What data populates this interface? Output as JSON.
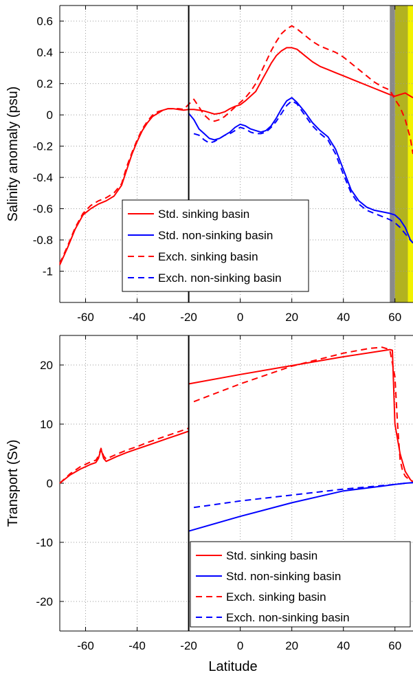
{
  "chart_data": [
    {
      "type": "line",
      "ylabel": "Salinity anomaly (psu)",
      "xlabel": "",
      "xlim": [
        -70,
        67
      ],
      "ylim": [
        -1.2,
        0.7
      ],
      "xticks": [
        -60,
        -40,
        -20,
        0,
        20,
        40,
        60
      ],
      "yticks": [
        -1,
        -0.8,
        -0.6,
        -0.4,
        -0.2,
        0,
        0.2,
        0.4,
        0.6
      ],
      "xtick_labels": [
        "-60",
        "-40",
        "-20",
        "0",
        "20",
        "40",
        "60"
      ],
      "ytick_labels": [
        "-1",
        "-0.8",
        "-0.6",
        "-0.4",
        "-0.2",
        "0",
        "0.2",
        "0.4",
        "0.6"
      ],
      "grid": true,
      "legend_position": "lower-left",
      "vertical_line_x": -20,
      "shaded_bands": [
        {
          "x0": 58,
          "x1": 60,
          "color": "#8a8a8a"
        },
        {
          "x0": 60,
          "x1": 65,
          "color": "#b2b220"
        },
        {
          "x0": 65,
          "x1": 67,
          "color": "#f2f200"
        }
      ],
      "series": [
        {
          "name": "Std. sinking basin",
          "color": "#ff0000",
          "dash": "solid",
          "x": [
            -70,
            -67,
            -64,
            -61,
            -58,
            -55,
            -52,
            -49,
            -46,
            -44,
            -42,
            -40,
            -38,
            -36,
            -34,
            -32,
            -30,
            -28,
            -26,
            -24,
            -22,
            -20,
            -18,
            -16,
            -14,
            -12,
            -10,
            -8,
            -6,
            -4,
            -2,
            0,
            2,
            4,
            6,
            8,
            10,
            12,
            14,
            16,
            18,
            20,
            22,
            25,
            28,
            31,
            34,
            37,
            40,
            43,
            46,
            49,
            52,
            55,
            58,
            60,
            62,
            64,
            66,
            67
          ],
          "y": [
            -0.96,
            -0.85,
            -0.73,
            -0.64,
            -0.6,
            -0.57,
            -0.55,
            -0.52,
            -0.45,
            -0.35,
            -0.25,
            -0.17,
            -0.1,
            -0.05,
            -0.01,
            0.01,
            0.03,
            0.04,
            0.04,
            0.035,
            0.03,
            0.035,
            0.035,
            0.03,
            0.025,
            0.015,
            0.005,
            0.01,
            0.02,
            0.04,
            0.055,
            0.065,
            0.09,
            0.12,
            0.15,
            0.21,
            0.27,
            0.33,
            0.38,
            0.41,
            0.43,
            0.43,
            0.42,
            0.38,
            0.34,
            0.31,
            0.29,
            0.27,
            0.25,
            0.23,
            0.21,
            0.19,
            0.17,
            0.15,
            0.13,
            0.12,
            0.13,
            0.14,
            0.12,
            0.11
          ]
        },
        {
          "name": "Std. non-sinking basin",
          "color": "#0000ff",
          "dash": "solid",
          "x": [
            -20,
            -18,
            -16,
            -14,
            -12,
            -10,
            -8,
            -6,
            -4,
            -2,
            0,
            2,
            4,
            6,
            8,
            10,
            12,
            14,
            16,
            18,
            20,
            22,
            25,
            28,
            31,
            34,
            37,
            40,
            43,
            46,
            49,
            52,
            55,
            58,
            60,
            62,
            64,
            66,
            67
          ],
          "y": [
            0.01,
            -0.03,
            -0.09,
            -0.12,
            -0.15,
            -0.16,
            -0.15,
            -0.13,
            -0.11,
            -0.08,
            -0.06,
            -0.07,
            -0.09,
            -0.1,
            -0.11,
            -0.1,
            -0.07,
            -0.02,
            0.04,
            0.09,
            0.11,
            0.08,
            0.02,
            -0.05,
            -0.1,
            -0.14,
            -0.22,
            -0.35,
            -0.48,
            -0.55,
            -0.59,
            -0.61,
            -0.62,
            -0.63,
            -0.64,
            -0.67,
            -0.72,
            -0.8,
            -0.82
          ]
        },
        {
          "name": "Exch. sinking basin",
          "color": "#ff0000",
          "dash": "dashed",
          "x": [
            -70,
            -67,
            -64,
            -61,
            -58,
            -55,
            -52,
            -49,
            -46,
            -44,
            -42,
            -40,
            -38,
            -36,
            -34,
            -32,
            -30,
            -28,
            -26,
            -24,
            -22,
            -18,
            -16,
            -14,
            -12,
            -10,
            -8,
            -6,
            -4,
            -2,
            0,
            2,
            4,
            6,
            8,
            10,
            12,
            14,
            16,
            18,
            20,
            22,
            25,
            28,
            31,
            34,
            37,
            40,
            43,
            46,
            49,
            52,
            55,
            58,
            60,
            62,
            64,
            66,
            67
          ],
          "y": [
            -0.95,
            -0.84,
            -0.72,
            -0.63,
            -0.58,
            -0.55,
            -0.53,
            -0.5,
            -0.44,
            -0.33,
            -0.24,
            -0.16,
            -0.09,
            -0.04,
            0.0,
            0.02,
            0.03,
            0.04,
            0.04,
            0.04,
            0.035,
            0.1,
            0.05,
            0.0,
            -0.03,
            -0.04,
            -0.03,
            -0.01,
            0.02,
            0.05,
            0.08,
            0.11,
            0.15,
            0.2,
            0.27,
            0.34,
            0.41,
            0.47,
            0.52,
            0.55,
            0.57,
            0.55,
            0.51,
            0.47,
            0.44,
            0.42,
            0.4,
            0.37,
            0.33,
            0.29,
            0.25,
            0.21,
            0.18,
            0.16,
            0.1,
            0.05,
            -0.03,
            -0.15,
            -0.25
          ]
        },
        {
          "name": "Exch. non-sinking basin",
          "color": "#0000ff",
          "dash": "dashed",
          "x": [
            -18,
            -16,
            -14,
            -12,
            -10,
            -8,
            -6,
            -4,
            -2,
            0,
            2,
            4,
            6,
            8,
            10,
            12,
            14,
            16,
            18,
            20,
            22,
            25,
            28,
            31,
            34,
            37,
            40,
            43,
            46,
            49,
            52,
            55,
            58,
            60,
            62,
            64,
            66,
            67
          ],
          "y": [
            -0.12,
            -0.13,
            -0.16,
            -0.18,
            -0.17,
            -0.15,
            -0.13,
            -0.12,
            -0.1,
            -0.08,
            -0.09,
            -0.11,
            -0.12,
            -0.12,
            -0.11,
            -0.08,
            -0.04,
            0.01,
            0.06,
            0.09,
            0.07,
            0.0,
            -0.07,
            -0.12,
            -0.16,
            -0.25,
            -0.38,
            -0.5,
            -0.57,
            -0.61,
            -0.63,
            -0.65,
            -0.67,
            -0.69,
            -0.72,
            -0.76,
            -0.8,
            -0.82
          ]
        }
      ]
    },
    {
      "type": "line",
      "ylabel": "Transport (Sv)",
      "xlabel": "Latitude",
      "xlim": [
        -70,
        67
      ],
      "ylim": [
        -25,
        25
      ],
      "xticks": [
        -60,
        -40,
        -20,
        0,
        20,
        40,
        60
      ],
      "yticks": [
        -20,
        -10,
        0,
        10,
        20
      ],
      "xtick_labels": [
        "-60",
        "-40",
        "-20",
        "0",
        "20",
        "40",
        "60"
      ],
      "ytick_labels": [
        "-20",
        "-10",
        "0",
        "10",
        "20"
      ],
      "grid": true,
      "legend_position": "lower-right",
      "vertical_line_x": -20,
      "series": [
        {
          "name": "Std. sinking basin",
          "color": "#ff0000",
          "dash": "solid",
          "x": [
            -70,
            -66,
            -62,
            -58,
            -56,
            -55,
            -54,
            -53,
            -52,
            -48,
            -44,
            -40,
            -36,
            -32,
            -28,
            -24,
            -20
          ],
          "y": [
            0,
            1.4,
            2.4,
            3.2,
            3.5,
            4.2,
            5.8,
            4.2,
            3.7,
            4.5,
            5.2,
            5.8,
            6.4,
            7.0,
            7.6,
            8.2,
            8.8
          ],
          "x2": [
            -20,
            0,
            20,
            40,
            55,
            58,
            59,
            60,
            62,
            64,
            66,
            67
          ],
          "y2": [
            16.8,
            18.4,
            19.9,
            21.4,
            22.4,
            22.6,
            22.5,
            10,
            5,
            2,
            0.6,
            0.2
          ]
        },
        {
          "name": "Std. non-sinking basin",
          "color": "#0000ff",
          "dash": "solid",
          "x": [
            -20,
            0,
            20,
            40,
            55,
            60,
            64,
            67
          ],
          "y": [
            -8.1,
            -5.6,
            -3.3,
            -1.3,
            -0.5,
            -0.2,
            0,
            0.1
          ]
        },
        {
          "name": "Exch. sinking basin",
          "color": "#ff0000",
          "dash": "dashed",
          "x": [
            -70,
            -66,
            -62,
            -58,
            -56,
            -55,
            -54,
            -53,
            -52,
            -48,
            -44,
            -40,
            -36,
            -32,
            -28,
            -24,
            -20
          ],
          "y": [
            0,
            1.6,
            2.8,
            3.6,
            3.9,
            4.6,
            5.9,
            4.6,
            4.1,
            4.9,
            5.6,
            6.2,
            6.9,
            7.5,
            8.1,
            8.7,
            9.3
          ],
          "x2": [
            -18,
            0,
            20,
            40,
            50,
            55,
            58,
            60,
            61,
            62,
            63,
            64,
            65,
            66,
            67
          ],
          "y2": [
            13.8,
            16.8,
            19.8,
            22.0,
            22.8,
            23.0,
            22.6,
            18,
            10,
            4,
            2,
            1.2,
            0.8,
            0.5,
            0.3
          ]
        },
        {
          "name": "Exch. non-sinking basin",
          "color": "#0000ff",
          "dash": "dashed",
          "x": [
            -18,
            0,
            20,
            40,
            55,
            60,
            64,
            67
          ],
          "y": [
            -4.1,
            -3.0,
            -2.0,
            -1.0,
            -0.4,
            -0.2,
            0,
            0.1
          ]
        }
      ]
    }
  ]
}
